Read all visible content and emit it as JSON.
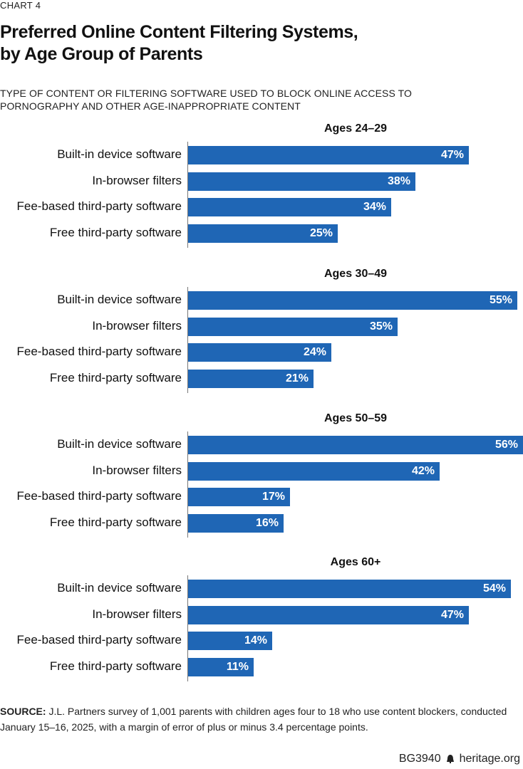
{
  "header": {
    "chart_number": "CHART 4",
    "title_line1": "Preferred Online Content Filtering Systems,",
    "title_line2": "by Age Group of Parents",
    "subtitle_line1": "TYPE OF CONTENT OR FILTERING SOFTWARE USED TO BLOCK ONLINE ACCESS TO",
    "subtitle_line2": "PORNOGRAPHY AND OTHER AGE-INAPPROPRIATE CONTENT"
  },
  "chart_data": {
    "type": "bar",
    "orientation": "horizontal",
    "xlim": [
      0,
      55
    ],
    "categories": [
      "Built-in device software",
      "In-browser filters",
      "Fee-based third-party software",
      "Free third-party software"
    ],
    "panels": [
      {
        "title": "Ages 24–29",
        "values": [
          47,
          38,
          34,
          25
        ],
        "labels": [
          "47%",
          "38%",
          "34%",
          "25%"
        ]
      },
      {
        "title": "Ages 30–49",
        "values": [
          55,
          35,
          24,
          21
        ],
        "labels": [
          "55%",
          "35%",
          "24%",
          "21%"
        ]
      },
      {
        "title": "Ages 50–59",
        "values": [
          56,
          42,
          17,
          16
        ],
        "labels": [
          "56%",
          "42%",
          "17%",
          "16%"
        ]
      },
      {
        "title": "Ages 60+",
        "values": [
          54,
          47,
          14,
          11
        ],
        "labels": [
          "54%",
          "47%",
          "14%",
          "11%"
        ]
      }
    ],
    "bar_color": "#1f66b5"
  },
  "source": {
    "label": "SOURCE:",
    "text": "J.L. Partners survey of 1,001 parents with children ages four to 18 who use content blockers, conducted January 15–16, 2025, with a margin of error of plus or minus 3.4 percentage points."
  },
  "footer": {
    "code": "BG3940",
    "site": "heritage.org"
  }
}
